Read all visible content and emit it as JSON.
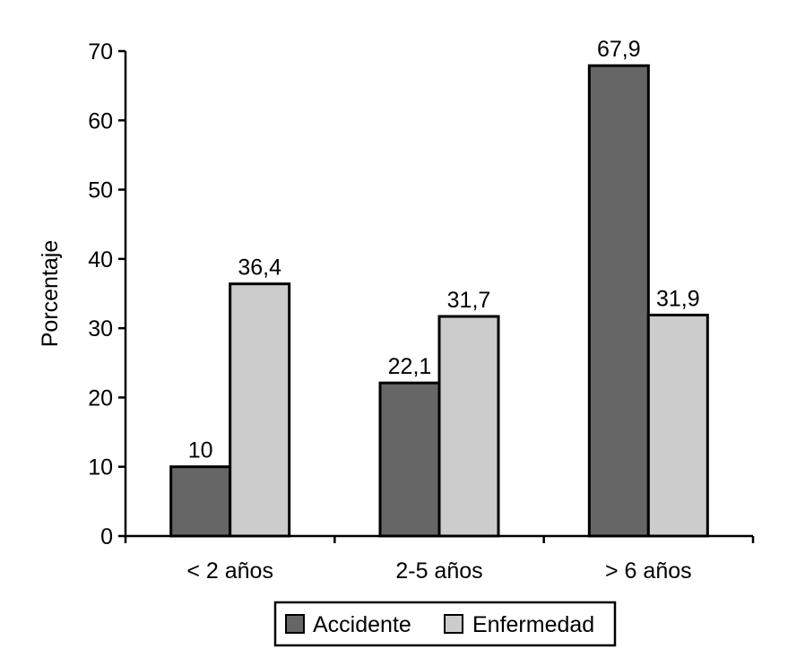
{
  "chart_data": {
    "type": "bar",
    "title": "",
    "xlabel": "",
    "ylabel": "Porcentaje",
    "ylim": [
      0,
      70
    ],
    "yticks": [
      0,
      10,
      20,
      30,
      40,
      50,
      60,
      70
    ],
    "categories": [
      "< 2 años",
      "2-5 años",
      "> 6 años"
    ],
    "series": [
      {
        "name": "Accidente",
        "color": "#666666",
        "values": [
          10,
          22.1,
          67.9
        ],
        "labels": [
          "10",
          "22,1",
          "67,9"
        ]
      },
      {
        "name": "Enfermedad",
        "color": "#cccccc",
        "values": [
          36.4,
          31.7,
          31.9
        ],
        "labels": [
          "36,4",
          "31,7",
          "31,9"
        ]
      }
    ],
    "grid": false,
    "legend_position": "bottom"
  }
}
